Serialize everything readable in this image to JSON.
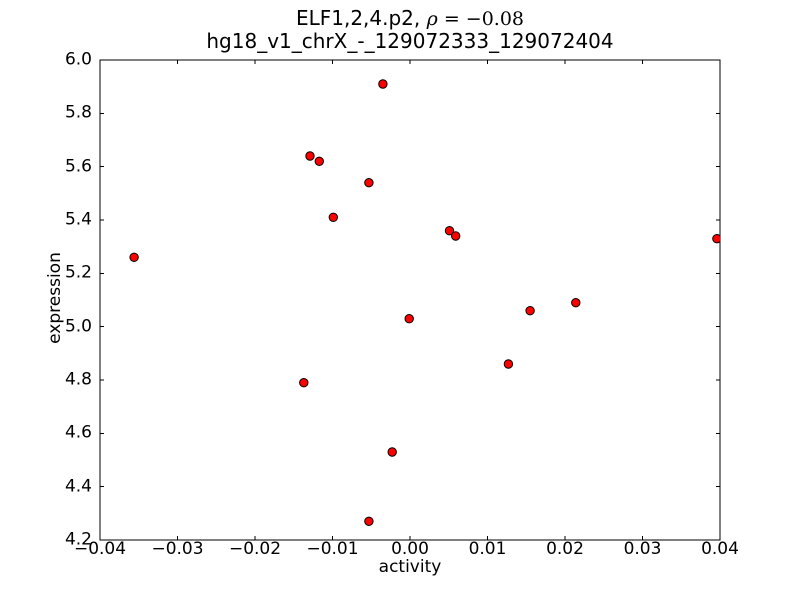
{
  "title": {
    "line1_prefix": "ELF1,2,4.p2, ",
    "rho_symbol": "ρ",
    "rho_value": " = −0.08",
    "line2": "hg18_v1_chrX_-_129072333_129072404"
  },
  "chart_data": {
    "type": "scatter",
    "title": "ELF1,2,4.p2, ρ=−0.08",
    "subtitle": "hg18_v1_chrX_-_129072333_129072404",
    "xlabel": "activity",
    "ylabel": "expression",
    "xlim": [
      -0.04,
      0.04
    ],
    "ylim": [
      4.2,
      6.0
    ],
    "xticks": [
      -0.04,
      -0.03,
      -0.02,
      -0.01,
      0.0,
      0.01,
      0.02,
      0.03,
      0.04
    ],
    "xtick_labels": [
      "−0.04",
      "−0.03",
      "−0.02",
      "−0.01",
      "0.00",
      "0.01",
      "0.02",
      "0.03",
      "0.04"
    ],
    "yticks": [
      4.2,
      4.4,
      4.6,
      4.8,
      5.0,
      5.2,
      5.4,
      5.6,
      5.8,
      6.0
    ],
    "ytick_labels": [
      "4.2",
      "4.4",
      "4.6",
      "4.8",
      "5.0",
      "5.2",
      "5.4",
      "5.6",
      "5.8",
      "6.0"
    ],
    "grid": false,
    "legend": null,
    "marker": {
      "shape": "circle",
      "fill_color": "#ff0000",
      "edge_color": "#000000",
      "radius_px": 4.2
    },
    "frame_color": "#000000",
    "background_color": "#ffffff",
    "points": [
      {
        "x": -0.0356,
        "y": 5.26
      },
      {
        "x": -0.0137,
        "y": 4.79
      },
      {
        "x": -0.0129,
        "y": 5.64
      },
      {
        "x": -0.0117,
        "y": 5.62
      },
      {
        "x": -0.0099,
        "y": 5.41
      },
      {
        "x": -0.0053,
        "y": 5.54
      },
      {
        "x": -0.0053,
        "y": 4.27
      },
      {
        "x": -0.0035,
        "y": 5.91
      },
      {
        "x": -0.0023,
        "y": 4.53
      },
      {
        "x": -0.0001,
        "y": 5.03
      },
      {
        "x": 0.0051,
        "y": 5.36
      },
      {
        "x": 0.0059,
        "y": 5.34
      },
      {
        "x": 0.0127,
        "y": 4.86
      },
      {
        "x": 0.0155,
        "y": 5.06
      },
      {
        "x": 0.0214,
        "y": 5.09
      },
      {
        "x": 0.0396,
        "y": 5.33
      }
    ]
  }
}
